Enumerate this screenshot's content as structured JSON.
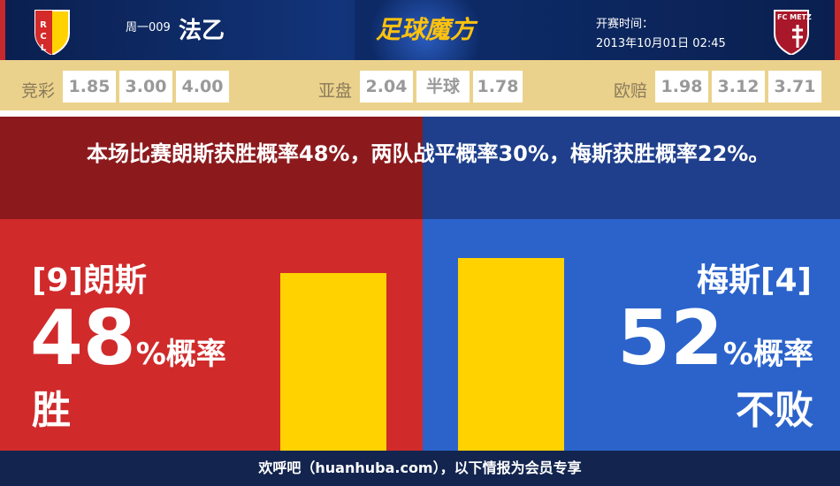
{
  "header": {
    "round": "周一009",
    "league": "法乙",
    "brand": "足球魔方",
    "time_label": "开赛时间：",
    "time_value": "2013年10月01日 02:45",
    "home_logo_text": "RCL",
    "away_logo_text": "FC METZ"
  },
  "odds": {
    "jingcai_label": "竞彩",
    "jingcai": [
      "1.85",
      "3.00",
      "4.00"
    ],
    "yapan_label": "亚盘",
    "yapan": [
      "2.04",
      "半球",
      "1.78"
    ],
    "oupei_label": "欧赔",
    "oupei": [
      "1.98",
      "3.12",
      "3.71"
    ]
  },
  "summary": "本场比赛朗斯获胜概率48%，两队战平概率30%，梅斯获胜概率22%。",
  "home": {
    "name": "[9]朗斯",
    "pct": "48",
    "pct_suffix": "%概率",
    "result": "胜",
    "bar_value": 48,
    "color": "#d02a2b"
  },
  "away": {
    "name": "梅斯[4]",
    "pct": "52",
    "pct_suffix": "%概率",
    "result": "不败",
    "bar_value": 52,
    "color": "#2b63cb"
  },
  "bar_color": "#ffd200",
  "footer": "欢呼吧（huanhuba.com），以下情报为会员专享"
}
